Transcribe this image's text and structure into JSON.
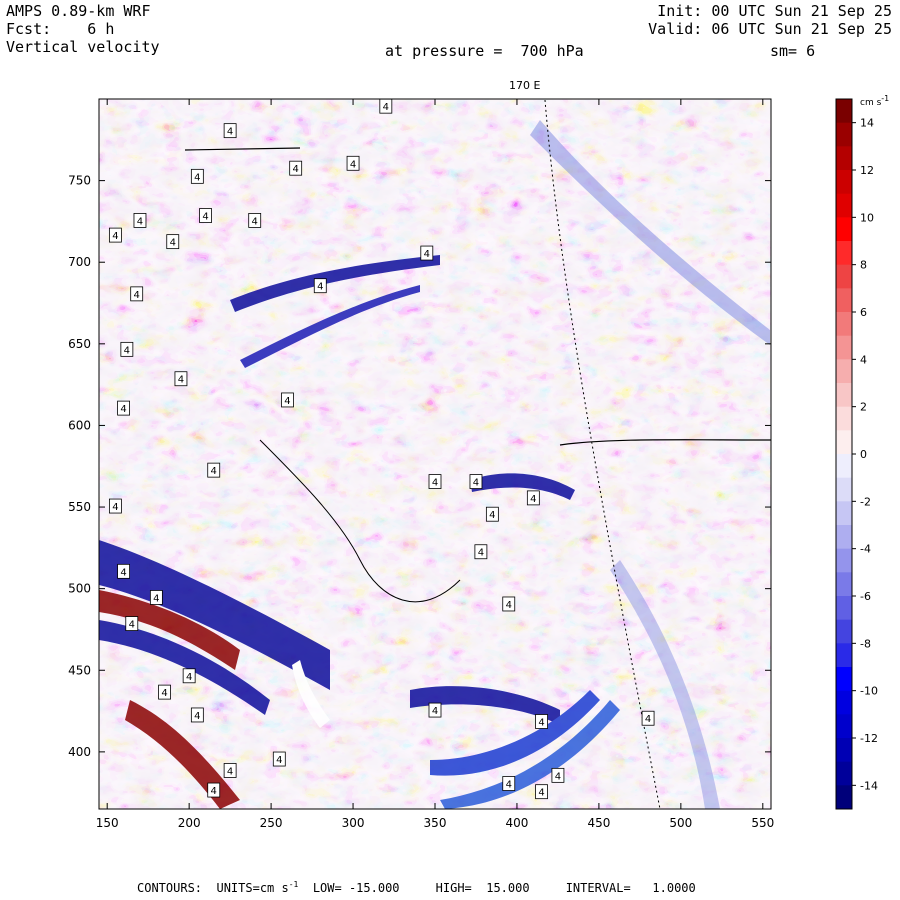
{
  "header": {
    "model": "AMPS 0.89-km WRF",
    "init": "Init: 00 UTC Sun 21 Sep 25",
    "forecast": "Fcst:    6 h",
    "valid": "Valid: 06 UTC Sun 21 Sep 25",
    "field": "Vertical velocity",
    "pressure": "at pressure =  700 hPa",
    "smoothing": "sm= 6"
  },
  "map": {
    "top_longitude_label": "170 E",
    "x_ticks": [
      "150",
      "200",
      "250",
      "300",
      "350",
      "400",
      "450",
      "500",
      "550"
    ],
    "y_ticks": [
      "400",
      "450",
      "500",
      "550",
      "600",
      "650",
      "700",
      "750"
    ],
    "contour_box_label": "4"
  },
  "colorbar": {
    "unit": "cm s",
    "unit_exp": "-1",
    "tick_labels": [
      "14",
      "12",
      "10",
      "8",
      "6",
      "4",
      "2",
      "0",
      "-2",
      "-4",
      "-6",
      "-8",
      "-10",
      "-12",
      "-14"
    ],
    "colors": [
      "#7a0000",
      "#9a0000",
      "#b40000",
      "#cc0000",
      "#e00000",
      "#ff0000",
      "#ff2a2a",
      "#ee4444",
      "#f06060",
      "#f27a7a",
      "#f49494",
      "#f6aeae",
      "#f8c6c6",
      "#fbdcdc",
      "#fdeeee",
      "#eeeefd",
      "#dcdcf8",
      "#c6c6f4",
      "#aeaef0",
      "#9494ec",
      "#7a7ae8",
      "#6060e4",
      "#4444e0",
      "#2a2ae8",
      "#0000ff",
      "#0000e0",
      "#0000cc",
      "#0000b4",
      "#00009a",
      "#00007a"
    ]
  },
  "footer": {
    "contours_label": "CONTOURS:",
    "units_label": "UNITS=cm s",
    "units_exp": "-1",
    "low": "LOW= -15.000",
    "high": "HIGH=  15.000",
    "interval": "INTERVAL=   1.0000"
  },
  "chart_data": {
    "type": "heatmap",
    "title": "Vertical velocity",
    "xlim": [
      145,
      555
    ],
    "ylim": [
      365,
      800
    ],
    "x_ticks": [
      150,
      200,
      250,
      300,
      350,
      400,
      450,
      500,
      550
    ],
    "y_ticks": [
      400,
      450,
      500,
      550,
      600,
      650,
      700,
      750
    ],
    "colorbar_range": [
      -15,
      15
    ],
    "contour_interval": 1.0,
    "colorbar_ticks": [
      14,
      12,
      10,
      8,
      6,
      4,
      2,
      0,
      -2,
      -4,
      -6,
      -8,
      -10,
      -12,
      -14
    ]
  }
}
